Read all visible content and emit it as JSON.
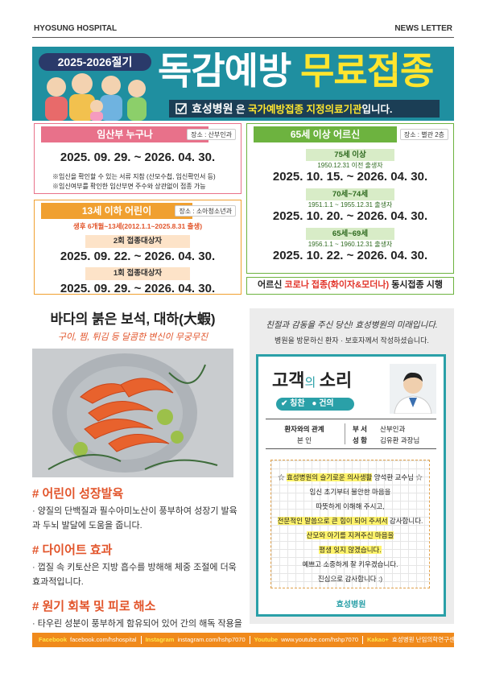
{
  "header": {
    "left": "HYOSUNG HOSPITAL",
    "right": "NEWS LETTER"
  },
  "banner": {
    "season": "2025-2026절기",
    "title_white": "독감예방",
    "title_yellow": "무료접종",
    "notice_hospital": "효성병원",
    "notice_text_1": "은",
    "notice_highlight": "국가예방접종 지정의료기관",
    "notice_text_2": "입니다."
  },
  "pregnant": {
    "title": "임산부 누구나",
    "place": "장소 : 산부인과",
    "period": "2025. 09. 29. ~ 2026. 04. 30.",
    "notes": [
      "※임신을 확인할 수 있는 서류 지참 (산모수첩, 임신확인서 등)",
      "※임신여부를 확인한 임산부면 주수와 상관없이 접종 가능"
    ]
  },
  "children": {
    "title": "13세 이하 어린이",
    "place": "장소 : 소아청소년과",
    "eligibility": "생후 6개월~13세(2012.1.1~2025.8.31 출생)",
    "groups": [
      {
        "label": "2회 접종대상자",
        "period": "2025. 09. 22. ~ 2026. 04. 30."
      },
      {
        "label": "1회 접종대상자",
        "period": "2025. 09. 29. ~ 2026. 04. 30."
      }
    ]
  },
  "seniors": {
    "title": "65세 이상 어르신",
    "place": "장소 : 별관 2층",
    "groups": [
      {
        "age": "75세 이상",
        "birth": "1950.12.31 이전 출생자",
        "period": "2025. 10. 15. ~ 2026. 04. 30."
      },
      {
        "age": "70세~74세",
        "birth": "1951.1.1 ~ 1955.12.31 출생자",
        "period": "2025. 10. 20. ~ 2026. 04. 30."
      },
      {
        "age": "65세~69세",
        "birth": "1956.1.1 ~ 1960.12.31 출생자",
        "period": "2025. 10. 22. ~ 2026. 04. 30."
      }
    ],
    "covid": {
      "prefix": "어르신",
      "highlight": "코로나 접종(화이자&모더나)",
      "suffix": "동시접종 시행"
    }
  },
  "article": {
    "title": "바다의 붉은 보석, 대하(大蝦)",
    "subtitle": "구이, 찜, 튀김 등 달콤한 변신이 무궁무진",
    "sections": [
      {
        "heading": "# 어린이 성장발육",
        "body": "· 양질의 단백질과 필수아미노산이 풍부하여 성장기 발육과 두뇌 발달에 도움을 줍니다."
      },
      {
        "heading": "# 다이어트 효과",
        "body": "· 껍질 속 키토산은 지방 흡수를 방해해 체중 조절에 더욱 효과적입니다."
      },
      {
        "heading": "# 원기 회복 및 피로 해소",
        "body": "· 타우린 성분이 풍부하게 함유되어 있어 간의 해독 작용을 돕고 피로 회복과 기력 보강에 뛰어난 효능을 발휘합니다."
      }
    ]
  },
  "voice": {
    "headline": "친절과 감동을 주신 당신! 효성병원의 미래입니다.",
    "intro": "병원을 방문하신 환자 · 보호자께서 작성하셨습니다.",
    "title": [
      "고객",
      "의",
      "소리"
    ],
    "toggles": [
      "칭찬",
      "건의"
    ],
    "relation_label": "환자와의 관계",
    "relation": "본 인",
    "dept_label": "부 서",
    "dept": "산부인과",
    "name_label": "성 함",
    "name": "김유환 과장님",
    "letter": [
      [
        "☆ ",
        "효성병원의 슬기로운 의사생활",
        " 양석환 교수님 ☆"
      ],
      [
        "임신 초기부터 불안한 마음을"
      ],
      [
        "따뜻하게 이해해 주시고,"
      ],
      [
        "전문적인 말씀으로 큰 힘이 되어 주셔서",
        " 감사합니다."
      ],
      [
        "산모와 아기를 지켜주신 마음을"
      ],
      [
        "평생 잊지 않겠습니다."
      ],
      [
        "예쁘고 소중하게 잘 키우겠습니다."
      ],
      [
        "진심으로 감사합니다 :)"
      ]
    ],
    "logo": "효성병원"
  },
  "footer": [
    {
      "label": "Facebook",
      "text": "facebook.com/hshospital"
    },
    {
      "label": "Instagram",
      "text": "instagram.com/hshp7070"
    },
    {
      "label": "Youtube",
      "text": "www.youtube.com/hshp7070"
    },
    {
      "label": "Kakao+",
      "text": "효성병원 난임의학연구센터"
    }
  ]
}
